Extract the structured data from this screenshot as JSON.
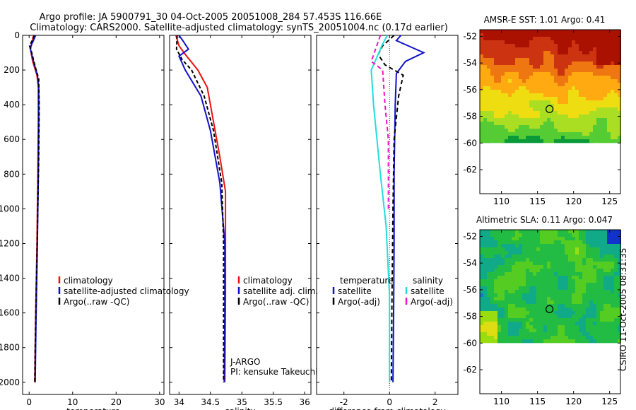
{
  "header": {
    "line1": "Argo profile: JA 5900791_30 04-Oct-2005 20051008_284 57.453S 116.66E",
    "line2": "Climatology: CARS2000. Satellite-adjusted climatology: synTS_20051004.nc (0.17d earlier)"
  },
  "credit": "CSIRO 11-Oct-2005 08:31:35",
  "colors": {
    "red": "#ee1111",
    "blue": "#1111cc",
    "black": "#000000",
    "cyan": "#22dddd",
    "magenta": "#ee11cc"
  },
  "chart_data": [
    {
      "id": "temperature",
      "type": "line",
      "xlabel": "temperature",
      "ylabel": "",
      "xlim": [
        -1.5,
        31
      ],
      "ylim": [
        2070,
        0
      ],
      "xticks": [
        0,
        10,
        20,
        30
      ],
      "yticks": [
        0,
        200,
        400,
        600,
        800,
        1000,
        1200,
        1400,
        1600,
        1800,
        2000
      ],
      "xtick_labels": [
        "0",
        "10",
        "20",
        "30"
      ],
      "ytick_labels": [
        "0",
        "200",
        "400",
        "600",
        "800",
        "1000",
        "1200",
        "1400",
        "1600",
        "1800",
        "2000"
      ],
      "legend": {
        "placement": "lower-right",
        "entries": [
          {
            "label": "climatology",
            "color": "red"
          },
          {
            "label": "satellite-adjusted climatology",
            "color": "blue"
          },
          {
            "label": "Argo(..raw -QC)",
            "color": "black"
          }
        ]
      },
      "annotations": [],
      "series": [
        {
          "name": "climatology",
          "color": "red",
          "dash": "",
          "points": [
            [
              1.0,
              0
            ],
            [
              0.6,
              50
            ],
            [
              0.3,
              80
            ],
            [
              0.8,
              150
            ],
            [
              1.8,
              230
            ],
            [
              2.1,
              300
            ],
            [
              2.1,
              500
            ],
            [
              2.0,
              800
            ],
            [
              1.8,
              1200
            ],
            [
              1.5,
              1600
            ],
            [
              1.3,
              2000
            ]
          ]
        },
        {
          "name": "satellite-adjusted climatology",
          "color": "blue",
          "dash": "",
          "points": [
            [
              1.5,
              0
            ],
            [
              0.8,
              40
            ],
            [
              0.2,
              70
            ],
            [
              1.0,
              150
            ],
            [
              1.9,
              230
            ],
            [
              2.2,
              300
            ],
            [
              2.2,
              500
            ],
            [
              2.1,
              800
            ],
            [
              1.9,
              1200
            ],
            [
              1.6,
              1600
            ],
            [
              1.4,
              2000
            ]
          ]
        },
        {
          "name": "Argo(..raw -QC)",
          "color": "black",
          "dash": "5,3",
          "points": [
            [
              1.2,
              0
            ],
            [
              0.7,
              30
            ],
            [
              0.1,
              60
            ],
            [
              0.6,
              100
            ],
            [
              1.4,
              180
            ],
            [
              2.2,
              250
            ],
            [
              2.3,
              400
            ],
            [
              2.2,
              700
            ],
            [
              2.0,
              1000
            ],
            [
              1.7,
              1400
            ],
            [
              1.4,
              1800
            ],
            [
              1.3,
              2000
            ]
          ]
        }
      ]
    },
    {
      "id": "salinity",
      "type": "line",
      "xlabel": "salinity",
      "ylabel": "",
      "xlim": [
        33.85,
        36.1
      ],
      "ylim": [
        2070,
        0
      ],
      "xticks": [
        34,
        34.5,
        35,
        35.5,
        36
      ],
      "yticks": [
        0,
        200,
        400,
        600,
        800,
        1000,
        1200,
        1400,
        1600,
        1800,
        2000
      ],
      "xtick_labels": [
        "34",
        "34.5",
        "35",
        "35.5",
        "36"
      ],
      "ytick_labels": [],
      "legend": {
        "placement": "lower-right",
        "entries": [
          {
            "label": "climatology",
            "color": "red"
          },
          {
            "label": "satellite adj. clim.",
            "color": "blue"
          },
          {
            "label": "Argo(..raw -QC)",
            "color": "black"
          }
        ]
      },
      "annotations": [
        "J-ARGO",
        "PI: kensuke Takeuchi"
      ],
      "series": [
        {
          "name": "climatology",
          "color": "red",
          "dash": "",
          "points": [
            [
              33.95,
              0
            ],
            [
              34.0,
              60
            ],
            [
              34.1,
              110
            ],
            [
              34.3,
              200
            ],
            [
              34.45,
              300
            ],
            [
              34.55,
              500
            ],
            [
              34.65,
              700
            ],
            [
              34.74,
              900
            ],
            [
              34.74,
              1100
            ],
            [
              34.74,
              1500
            ],
            [
              34.73,
              2000
            ]
          ]
        },
        {
          "name": "satellite adj. clim.",
          "color": "blue",
          "dash": "",
          "points": [
            [
              34.0,
              0
            ],
            [
              34.05,
              25
            ],
            [
              34.15,
              80
            ],
            [
              34.0,
              120
            ],
            [
              34.1,
              200
            ],
            [
              34.35,
              350
            ],
            [
              34.5,
              550
            ],
            [
              34.65,
              850
            ],
            [
              34.73,
              1200
            ],
            [
              34.73,
              1600
            ],
            [
              34.72,
              2000
            ]
          ]
        },
        {
          "name": "Argo(..raw -QC)",
          "color": "black",
          "dash": "5,3",
          "points": [
            [
              33.97,
              0
            ],
            [
              33.96,
              80
            ],
            [
              34.05,
              140
            ],
            [
              34.2,
              200
            ],
            [
              34.4,
              350
            ],
            [
              34.55,
              550
            ],
            [
              34.68,
              850
            ],
            [
              34.71,
              1200
            ],
            [
              34.71,
              1600
            ],
            [
              34.71,
              2000
            ]
          ]
        }
      ]
    },
    {
      "id": "difference",
      "type": "line",
      "xlabel": "difference from climatology",
      "ylabel": "",
      "xlim": [
        -3.2,
        3.0
      ],
      "ylim": [
        2070,
        0
      ],
      "xticks": [
        -2,
        0,
        2
      ],
      "yticks": [
        0,
        200,
        400,
        600,
        800,
        1000,
        1200,
        1400,
        1600,
        1800,
        2000
      ],
      "xtick_labels": [
        "-2",
        "0",
        "2"
      ],
      "ytick_labels": [],
      "legend": {
        "placement": "lower-center",
        "entries": [
          {
            "label": "temperature",
            "color": "",
            "group": "temperature"
          },
          {
            "label": "satellite",
            "color": "blue",
            "group": "temperature"
          },
          {
            "label": "Argo(-adj)",
            "color": "black",
            "group": "temperature"
          },
          {
            "label": "salinity",
            "color": "",
            "group": "salinity"
          },
          {
            "label": "satellite",
            "color": "cyan",
            "group": "salinity"
          },
          {
            "label": "Argo(-adj)",
            "color": "magenta",
            "group": "salinity"
          }
        ]
      },
      "annotations": [],
      "series": [
        {
          "name": "temperature satellite",
          "color": "blue",
          "dash": "",
          "points": [
            [
              0.5,
              0
            ],
            [
              0.3,
              30
            ],
            [
              1.5,
              100
            ],
            [
              0.7,
              150
            ],
            [
              0.3,
              220
            ],
            [
              0.25,
              400
            ],
            [
              0.2,
              800
            ],
            [
              0.2,
              1200
            ],
            [
              0.18,
              1600
            ],
            [
              0.15,
              2000
            ]
          ]
        },
        {
          "name": "temperature Argo(-adj)",
          "color": "black",
          "dash": "6,4",
          "points": [
            [
              0.2,
              0
            ],
            [
              -0.3,
              60
            ],
            [
              -0.5,
              110
            ],
            [
              -0.2,
              170
            ],
            [
              0.6,
              230
            ],
            [
              0.4,
              350
            ],
            [
              0.2,
              600
            ],
            [
              0.15,
              1000
            ],
            [
              0.1,
              1600
            ],
            [
              0.08,
              2000
            ]
          ]
        },
        {
          "name": "salinity satellite",
          "color": "cyan",
          "dash": "",
          "points": [
            [
              -0.1,
              0
            ],
            [
              -0.3,
              50
            ],
            [
              -0.8,
              200
            ],
            [
              -0.7,
              400
            ],
            [
              -0.4,
              800
            ],
            [
              -0.15,
              1100
            ],
            [
              0.0,
              1500
            ],
            [
              0.0,
              2000
            ]
          ]
        },
        {
          "name": "salinity Argo(-adj)",
          "color": "magenta",
          "dash": "6,4",
          "points": [
            [
              -0.4,
              0
            ],
            [
              -0.8,
              150
            ],
            [
              -0.3,
              200
            ],
            [
              -0.2,
              400
            ],
            [
              -0.05,
              600
            ],
            [
              -0.05,
              800
            ],
            [
              -0.05,
              1000
            ]
          ]
        }
      ]
    },
    {
      "id": "amsre-sst",
      "type": "heatmap",
      "title": "AMSR-E SST: 1.01 Argo: 0.41",
      "xlim": [
        107,
        126.5
      ],
      "ylim": [
        -63.8,
        -51.5
      ],
      "xticks": [
        110,
        115,
        120,
        125
      ],
      "yticks": [
        -52,
        -54,
        -56,
        -58,
        -60,
        -62
      ],
      "xtick_labels": [
        "110",
        "115",
        "120",
        "125"
      ],
      "ytick_labels": [
        "-52",
        "-54",
        "-56",
        "-58",
        "-60",
        "-62"
      ],
      "data_extent_south": -60,
      "marker": {
        "lon": 116.66,
        "lat": -57.453
      },
      "colormap": [
        "#0a9a3a",
        "#55cc33",
        "#aade22",
        "#eedd11",
        "#ffaa11",
        "#ee7711",
        "#cc3311",
        "#aa1100"
      ]
    },
    {
      "id": "altimetric-sla",
      "type": "heatmap",
      "title": "Altimetric SLA: 0.11 Argo: 0.047",
      "xlim": [
        107,
        126.5
      ],
      "ylim": [
        -63.8,
        -51.5
      ],
      "xticks": [
        110,
        115,
        120,
        125
      ],
      "yticks": [
        -52,
        -54,
        -56,
        -58,
        -60,
        -62
      ],
      "xtick_labels": [
        "110",
        "115",
        "120",
        "125"
      ],
      "ytick_labels": [
        "-52",
        "-54",
        "-56",
        "-58",
        "-60",
        "-62"
      ],
      "data_extent_south": -60,
      "marker": {
        "lon": 116.66,
        "lat": -57.453
      },
      "colormap": [
        "#1133cc",
        "#1177cc",
        "#11aa88",
        "#22bb44",
        "#55cc22",
        "#99dd11",
        "#dddd11",
        "#eeaa11"
      ]
    }
  ]
}
